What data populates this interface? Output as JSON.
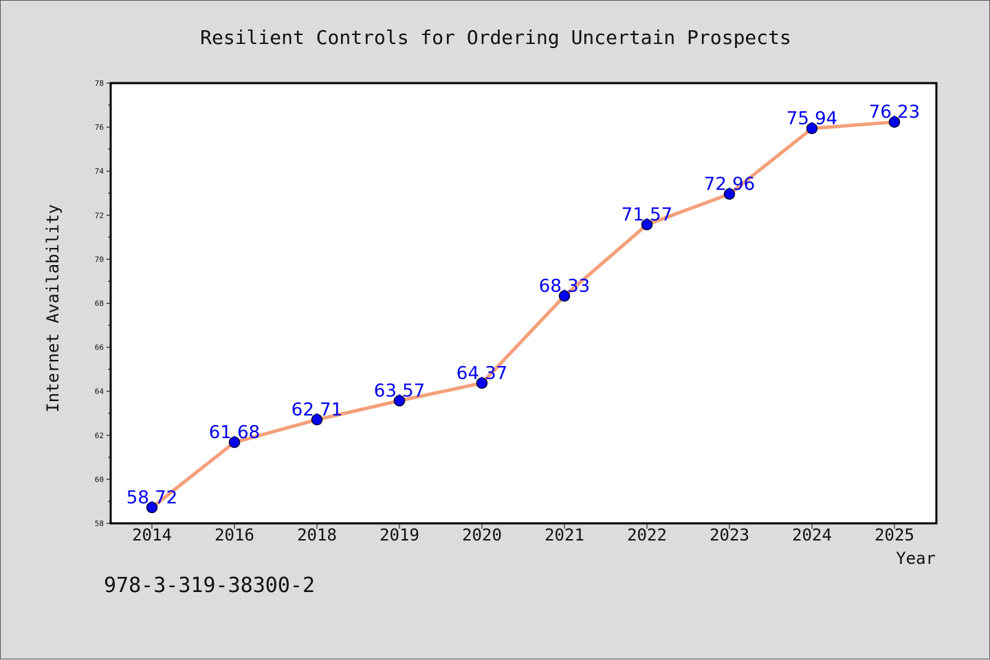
{
  "chart_data": {
    "type": "line",
    "title": "Resilient Controls for Ordering Uncertain Prospects",
    "xlabel": "Year",
    "ylabel": "Internet Availability",
    "categories": [
      "2014",
      "2016",
      "2018",
      "2019",
      "2020",
      "2021",
      "2022",
      "2023",
      "2024",
      "2025"
    ],
    "values": [
      58.72,
      61.68,
      62.71,
      63.57,
      64.37,
      68.33,
      71.57,
      72.96,
      75.94,
      76.23
    ],
    "data_labels": [
      "58.72",
      "61.68",
      "62.71",
      "63.57",
      "64.37",
      "68.33",
      "71.57",
      "72.96",
      "75.94",
      "76.23"
    ],
    "ylim": [
      58,
      78
    ],
    "yticks": [
      "58",
      "60",
      "62",
      "64",
      "66",
      "68",
      "70",
      "72",
      "74",
      "76",
      "78"
    ],
    "grid": false,
    "colors": {
      "line": "#f4a07a",
      "marker": "#0000ee",
      "marker_edge": "#000033",
      "data_label": "#0000ee",
      "plot_bg": "#ffffff",
      "figure_bg": "#dcdcdc"
    }
  },
  "footer": {
    "code": "978-3-319-38300-2"
  }
}
